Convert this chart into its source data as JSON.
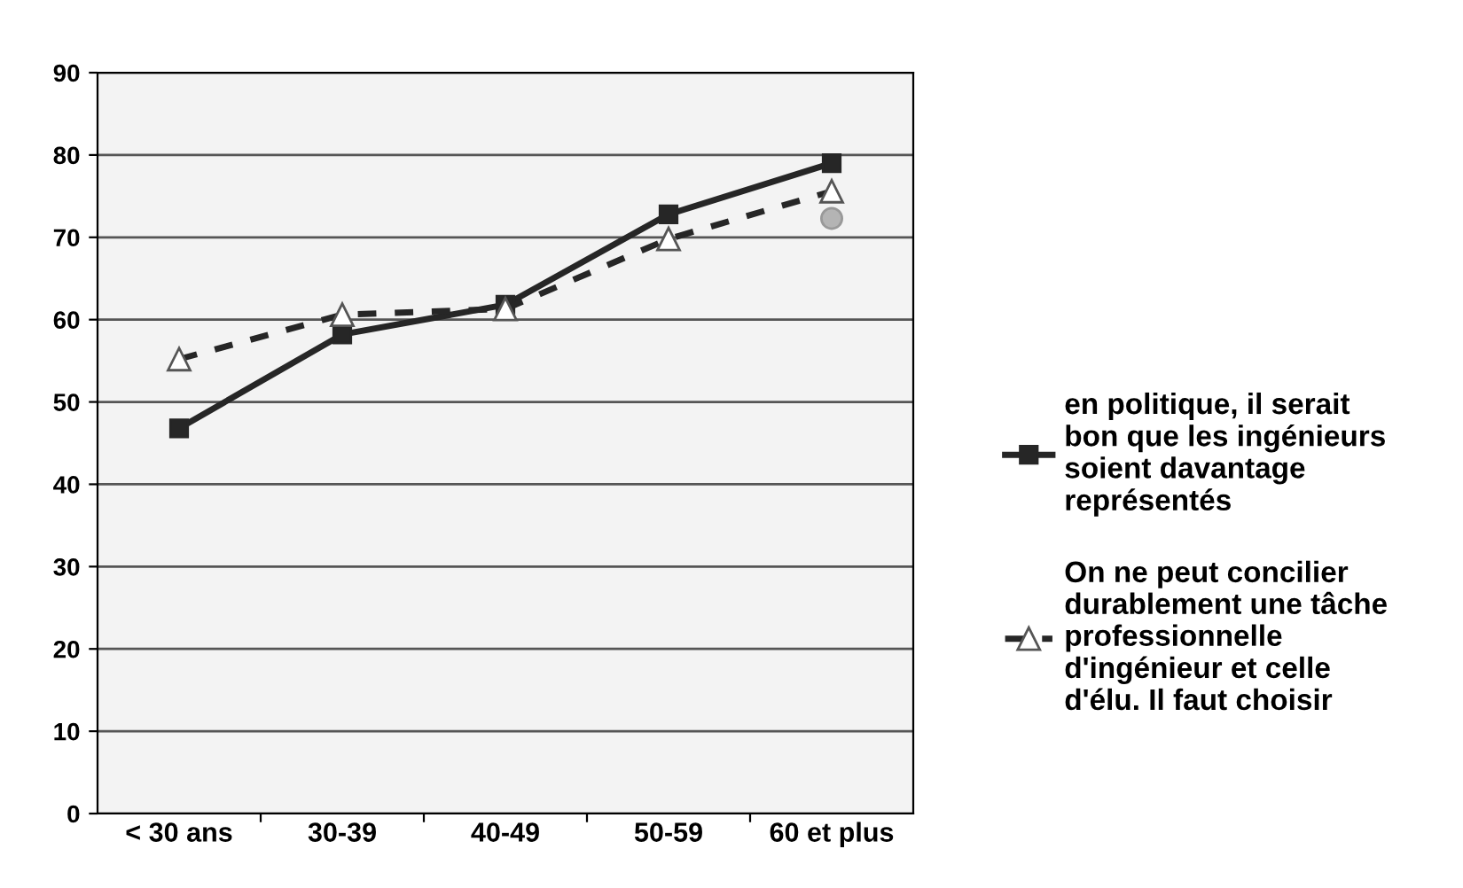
{
  "chart_data": {
    "type": "line",
    "categories": [
      "< 30 ans",
      "30-39",
      "40-49",
      "50-59",
      "60 et plus"
    ],
    "series": [
      {
        "name": "en politique, il serait bon que les ingénieurs soient davantage représentés",
        "color": "#262626",
        "marker": "square",
        "line_style": "solid",
        "values": [
          46.8,
          58.2,
          61.8,
          72.8,
          79
        ]
      },
      {
        "name": "On ne peut concilier durablement une tâche professionnelle d'ingénieur et celle d'élu. Il faut choisir",
        "color": "#262626",
        "marker": "triangle",
        "line_style": "dashed",
        "values": [
          55.2,
          60.6,
          61.3,
          69.8,
          75.6
        ]
      },
      {
        "type": "scatter",
        "color": "#b4b4b4",
        "marker": "circle",
        "values": [
          null,
          null,
          null,
          null,
          72.3
        ]
      }
    ],
    "ylim": [
      0,
      90
    ],
    "yticks": [
      0,
      10,
      20,
      30,
      40,
      50,
      60,
      70,
      80,
      90
    ],
    "grid": "y",
    "legend": "right"
  }
}
